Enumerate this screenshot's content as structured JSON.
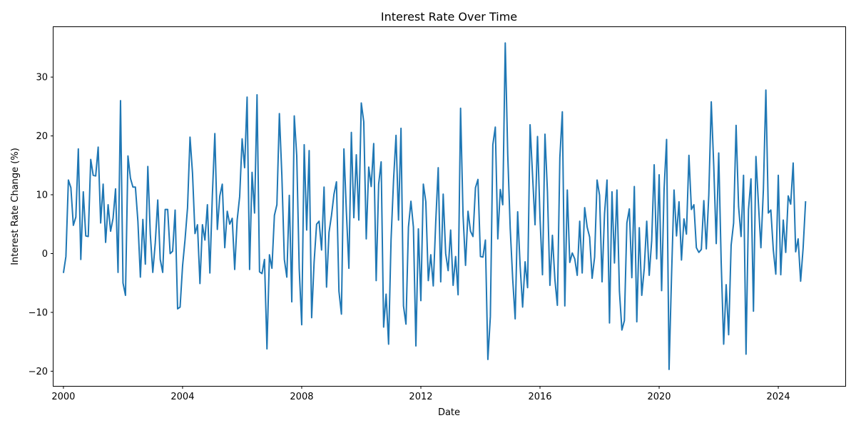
{
  "chart_data": {
    "type": "line",
    "title": "Interest Rate Over Time",
    "xlabel": "Date",
    "ylabel": "Interest Rate Change (%)",
    "x_ticks": [
      "2000",
      "2004",
      "2008",
      "2012",
      "2016",
      "2020",
      "2024"
    ],
    "y_ticks": [
      -20,
      -10,
      0,
      10,
      20,
      30
    ],
    "xlim": [
      "1999-09",
      "2026-04"
    ],
    "ylim": [
      -22.5,
      38.5
    ],
    "grid": false,
    "line_color": "#1f77b4",
    "series": [
      {
        "start": "2000-01",
        "frequency": "monthly",
        "values": [
          -3.3,
          -0.5,
          12.5,
          11.2,
          4.8,
          6.2,
          17.8,
          -1.0,
          10.5,
          3.0,
          2.9,
          16.0,
          13.3,
          13.2,
          18.1,
          5.2,
          11.8,
          1.9,
          8.3,
          3.8,
          6.0,
          11.0,
          -3.2,
          26.0,
          -5.0,
          -7.1,
          16.6,
          12.8,
          11.3,
          11.3,
          5.5,
          -4.0,
          5.8,
          -1.8,
          14.8,
          3.3,
          -3.2,
          1.8,
          9.1,
          -1.0,
          -3.2,
          7.5,
          7.5,
          0.0,
          0.4,
          7.4,
          -9.4,
          -9.1,
          -2.1,
          2.4,
          7.8,
          19.8,
          13.7,
          3.4,
          4.9,
          -5.1,
          4.9,
          2.3,
          8.3,
          -3.3,
          9.9,
          20.4,
          4.1,
          9.8,
          11.8,
          1.0,
          7.2,
          5.0,
          6.0,
          -2.7,
          5.7,
          9.7,
          19.5,
          14.6,
          26.6,
          -2.7,
          13.8,
          6.9,
          27.0,
          -3.1,
          -3.4,
          -1.0,
          -16.2,
          -0.2,
          -2.5,
          6.5,
          8.3,
          23.8,
          13.3,
          -1.0,
          -4.0,
          9.9,
          -8.2,
          23.4,
          16.6,
          -2.6,
          -12.1,
          18.5,
          4.0,
          17.5,
          -10.9,
          -1.4,
          5.0,
          5.5,
          0.6,
          11.3,
          -5.7,
          3.6,
          6.5,
          10.1,
          12.2,
          -6.4,
          -10.3,
          17.8,
          7.1,
          -2.5,
          20.6,
          6.1,
          16.8,
          5.7,
          25.6,
          22.4,
          2.5,
          14.7,
          11.4,
          18.7,
          -4.6,
          11.8,
          15.6,
          -12.5,
          -6.9,
          -15.4,
          2.4,
          12.5,
          20.1,
          5.7,
          21.3,
          -8.9,
          -12.0,
          4.5,
          8.9,
          4.5,
          -15.7,
          4.2,
          -8.0,
          11.8,
          8.8,
          -4.6,
          -0.2,
          -5.5,
          5.4,
          14.6,
          -4.8,
          10.1,
          0.0,
          -2.9,
          4.0,
          -5.4,
          -0.5,
          -7.0,
          24.7,
          6.5,
          -2.0,
          7.2,
          3.8,
          2.9,
          11.2,
          12.6,
          -0.5,
          -0.6,
          2.3,
          -18.0,
          -10.7,
          18.5,
          21.5,
          2.5,
          10.9,
          8.3,
          35.8,
          16.9,
          4.3,
          -4.3,
          -11.1,
          7.1,
          -2.1,
          -9.1,
          -1.4,
          -5.8,
          21.9,
          13.3,
          4.9,
          19.9,
          6.1,
          -3.6,
          20.3,
          10.5,
          -5.4,
          3.1,
          -4.4,
          -8.8,
          16.3,
          24.1,
          -8.9,
          10.8,
          -1.5,
          0.1,
          -0.9,
          -3.7,
          5.5,
          -3.3,
          7.8,
          4.5,
          2.8,
          -4.2,
          -0.6,
          12.5,
          9.9,
          -4.8,
          6.8,
          12.5,
          -11.8,
          10.5,
          -1.6,
          10.8,
          -6.4,
          -13.0,
          -11.4,
          5.2,
          7.6,
          -4.1,
          11.4,
          -11.6,
          4.4,
          -7.1,
          -2.5,
          5.5,
          -3.7,
          2.2,
          15.1,
          -0.9,
          13.4,
          -6.3,
          11.0,
          19.4,
          -19.7,
          -3.7,
          10.8,
          3.0,
          8.8,
          -1.1,
          5.9,
          3.3,
          16.7,
          7.5,
          8.3,
          1.0,
          0.2,
          0.7,
          9.0,
          0.8,
          9.9,
          25.8,
          14.9,
          1.7,
          17.1,
          -1.5,
          -15.4,
          -5.3,
          -13.8,
          1.4,
          5.2,
          21.8,
          8.0,
          2.9,
          13.3,
          -17.1,
          7.5,
          12.7,
          -9.8,
          16.5,
          8.5,
          1.0,
          10.9,
          27.8,
          6.9,
          7.4,
          0.6,
          -3.5,
          13.3,
          -3.6,
          5.7,
          0.2,
          9.8,
          8.4,
          15.4,
          0.3,
          2.5,
          -4.7,
          0.9,
          8.9
        ]
      }
    ]
  }
}
